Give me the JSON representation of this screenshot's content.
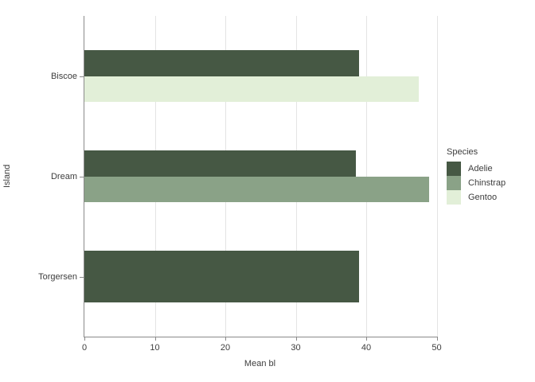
{
  "chart_data": {
    "type": "bar",
    "orientation": "horizontal",
    "title": "",
    "xlabel": "Mean bl",
    "ylabel": "Island",
    "legend_title": "Species",
    "legend_position": "right",
    "grid": "vertical-gridlines-only",
    "categories": [
      "Biscoe",
      "Dream",
      "Torgersen"
    ],
    "series": [
      {
        "name": "Adelie",
        "color": "#465844",
        "values": [
          39.0,
          38.5,
          39.0
        ]
      },
      {
        "name": "Chinstrap",
        "color": "#8AA287",
        "values": [
          null,
          48.9,
          null
        ]
      },
      {
        "name": "Gentoo",
        "color": "#E2EFD8",
        "values": [
          47.5,
          null,
          null
        ]
      }
    ],
    "xlim": [
      0,
      50
    ],
    "xticks": [
      0,
      10,
      20,
      30,
      40,
      50
    ]
  },
  "colors": {
    "background": "#ffffff",
    "axis_line": "#8a8a8a",
    "gridline": "#e4e4e4",
    "text": "#3d3d3d"
  }
}
